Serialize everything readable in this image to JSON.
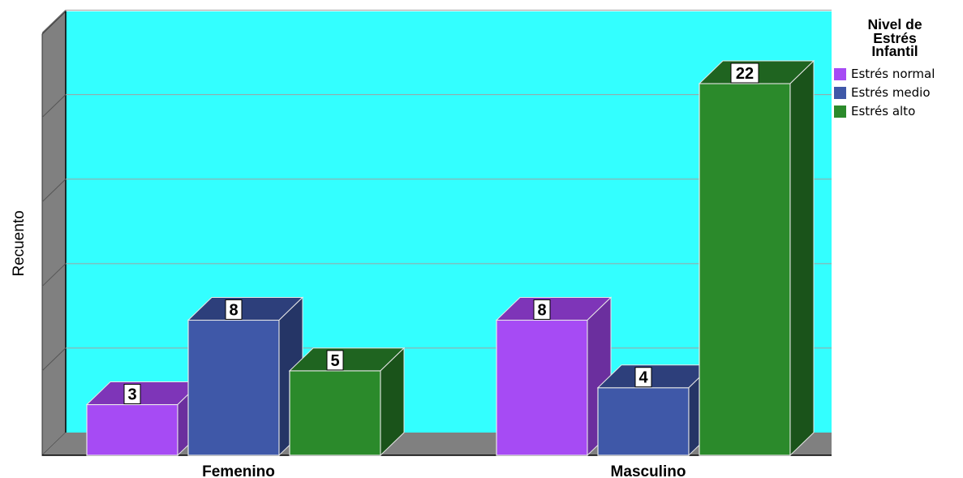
{
  "chart_data": {
    "type": "bar",
    "style": "3d-clustered",
    "categories": [
      "Femenino",
      "Masculino"
    ],
    "series": [
      {
        "name": "Estrés normal",
        "values": [
          3,
          8
        ],
        "color": "#a64bf4",
        "side": "#6b2f9e",
        "top": "#7e35b8"
      },
      {
        "name": "Estrés medio",
        "values": [
          8,
          4
        ],
        "color": "#3f58a8",
        "side": "#253566",
        "top": "#2d3f7b"
      },
      {
        "name": "Estrés alto",
        "values": [
          5,
          22
        ],
        "color": "#2b8a2b",
        "side": "#1a531a",
        "top": "#1f6420"
      }
    ],
    "ylabel": "Recuento",
    "xlabel": "",
    "ylim": [
      0,
      26
    ],
    "grid": true,
    "gridlines_at": [
      5,
      10,
      15,
      20,
      25
    ],
    "legend": {
      "title": "Nivel de Estrés Infantil",
      "position": "right"
    },
    "colors": {
      "plot_background": "#33ffff",
      "walls": "#808080",
      "gridline": "#a0a0a0"
    }
  },
  "legend_title_lines": [
    "Nivel de",
    "Estrés",
    "Infantil"
  ]
}
